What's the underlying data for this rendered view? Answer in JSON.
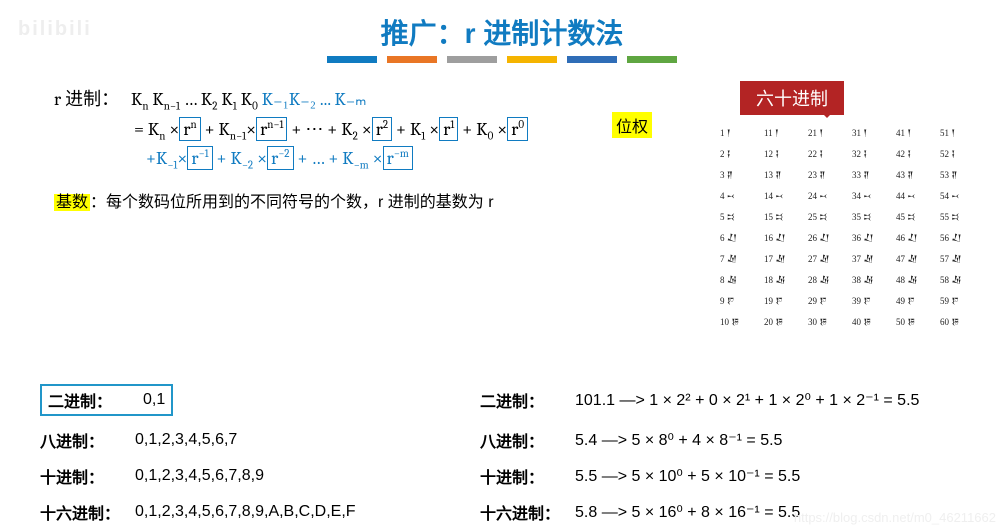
{
  "watermark": "bilibili",
  "title": "推广：r 进制计数法",
  "bars": [
    "#107bc1",
    "#e97625",
    "#9e9e9e",
    "#f5b400",
    "#2f6db7",
    "#5fa641"
  ],
  "formula": {
    "prefix": "r 进制：",
    "neg_digits": "K₋₁K₋₂ ... K₋ₘ",
    "line2_pre": "= K",
    "dots": " + ⋯ + ",
    "plus": " + "
  },
  "weight_label": "位权",
  "radix": {
    "hl": "基数",
    "text": "：每个数码位所用到的不同符号的个数，r 进制的基数为 r"
  },
  "sixty_label": "六十进制",
  "bottom": {
    "left": [
      {
        "label": "二进制：",
        "val": "0,1",
        "hl": true
      },
      {
        "label": "八进制：",
        "val": "0,1,2,3,4,5,6,7"
      },
      {
        "label": "十进制：",
        "val": "0,1,2,3,4,5,6,7,8,9"
      },
      {
        "label": "十六进制：",
        "val": "0,1,2,3,4,5,6,7,8,9,A,B,C,D,E,F"
      }
    ],
    "right": [
      {
        "label": "二进制：",
        "val": "101.1 —> 1 × 2² + 0 × 2¹ + 1 × 2⁰ + 1 × 2⁻¹ = 5.5"
      },
      {
        "label": "八进制：",
        "val": "5.4 —> 5 × 8⁰ + 4 × 8⁻¹ = 5.5"
      },
      {
        "label": "十进制：",
        "val": "5.5 —> 5 × 10⁰ + 5 × 10⁻¹ = 5.5"
      },
      {
        "label": "十六进制：",
        "val": "5.8 —> 5 × 16⁰ + 8 × 16⁻¹ = 5.5"
      }
    ]
  },
  "csdn": "https://blog.csdn.net/m0_46211662"
}
